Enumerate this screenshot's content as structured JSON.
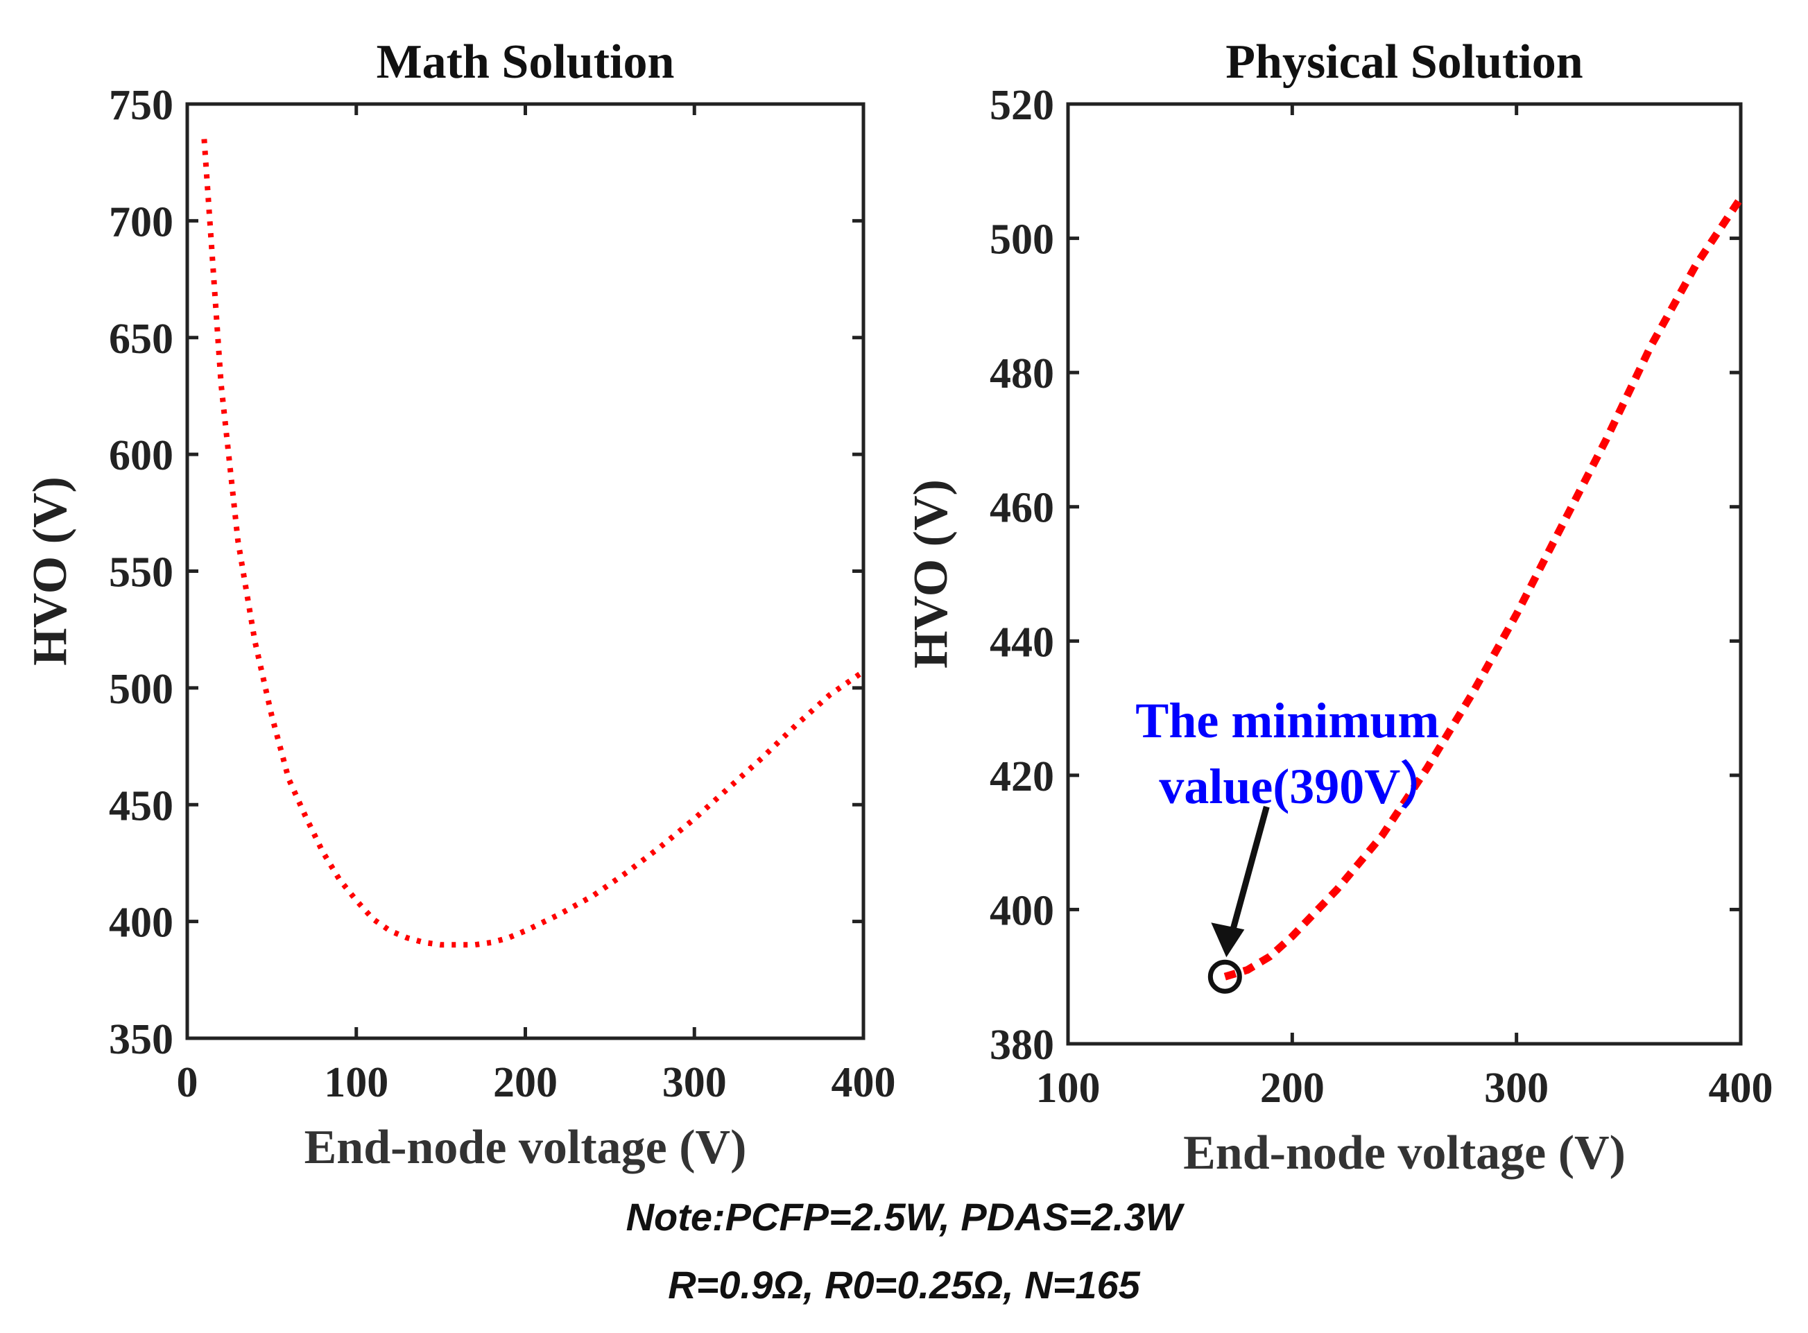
{
  "chart_data": [
    {
      "type": "line",
      "title": "Math Solution",
      "xlabel": "End-node voltage (V)",
      "ylabel": "HVO (V)",
      "xlim": [
        0,
        400
      ],
      "ylim": [
        350,
        750
      ],
      "xticks": [
        0,
        100,
        200,
        300,
        400
      ],
      "yticks": [
        350,
        400,
        450,
        500,
        550,
        600,
        650,
        700,
        750
      ],
      "grid": false,
      "series": [
        {
          "name": "HVO",
          "color": "#ff0000",
          "style": "dotted",
          "x": [
            10,
            20,
            30,
            40,
            50,
            60,
            70,
            80,
            90,
            100,
            110,
            120,
            130,
            140,
            150,
            160,
            170,
            180,
            190,
            200,
            220,
            240,
            260,
            280,
            300,
            320,
            340,
            360,
            380,
            400
          ],
          "y": [
            735,
            630,
            563,
            520,
            488,
            461,
            445,
            430,
            418,
            409,
            401,
            396,
            393,
            391,
            390,
            390,
            390,
            391,
            393,
            396,
            403,
            411,
            421,
            432,
            444,
            457,
            470,
            484,
            497,
            507
          ]
        }
      ]
    },
    {
      "type": "line",
      "title": "Physical Solution",
      "xlabel": "End-node voltage (V)",
      "ylabel": "HVO (V)",
      "xlim": [
        100,
        400
      ],
      "ylim": [
        380,
        520
      ],
      "xticks": [
        100,
        200,
        300,
        400
      ],
      "yticks": [
        380,
        400,
        420,
        440,
        460,
        480,
        500,
        520
      ],
      "grid": false,
      "series": [
        {
          "name": "HVO",
          "color": "#ff0000",
          "style": "dashed",
          "x": [
            170,
            180,
            190,
            200,
            220,
            240,
            260,
            280,
            300,
            320,
            340,
            360,
            380,
            400
          ],
          "y": [
            390,
            391,
            393,
            396,
            403,
            411,
            421,
            432,
            444,
            457,
            470,
            484,
            496,
            506
          ]
        }
      ],
      "annotations": [
        {
          "text_lines": [
            "The minimum",
            "value(390V）"
          ],
          "color": "#0000ff",
          "point": [
            170,
            390
          ],
          "marker": "circle"
        }
      ]
    }
  ],
  "note": {
    "line1": "Note:PCFP=2.5W, PDAS=2.3W",
    "line2": "R=0.9Ω, R0=0.25Ω, N=165"
  }
}
